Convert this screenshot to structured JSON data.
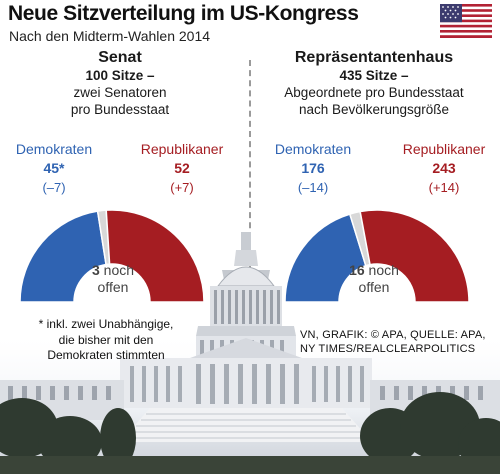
{
  "header": {
    "title": "Neue Sitzverteilung im US-Kongress",
    "subtitle": "Nach den Midterm-Wahlen 2014"
  },
  "colors": {
    "democrats": "#2f63b2",
    "republicans": "#a51d22",
    "open": "#d8d8d8"
  },
  "chart_data": [
    {
      "type": "pie",
      "title": "Senat",
      "total_label": "100 Sitze –",
      "desc_line1": "zwei Senatoren",
      "desc_line2": "pro Bundesstaat",
      "series": [
        {
          "name": "Demokraten",
          "value": 45,
          "value_label": "45*",
          "change": "(–7)"
        },
        {
          "name": "Republikaner",
          "value": 52,
          "value_label": "52",
          "change": "(+7)"
        }
      ],
      "open": {
        "value": 3,
        "label_line1": "noch",
        "label_line2": "offen"
      }
    },
    {
      "type": "pie",
      "title": "Repräsentantenhaus",
      "total_label": "435 Sitze –",
      "desc_line1": "Abgeordnete pro Bundesstaat",
      "desc_line2": "nach Bevölkerungsgröße",
      "series": [
        {
          "name": "Demokraten",
          "value": 176,
          "value_label": "176",
          "change": "(–14)"
        },
        {
          "name": "Republikaner",
          "value": 243,
          "value_label": "243",
          "change": "(+14)"
        }
      ],
      "open": {
        "value": 16,
        "label_line1": "noch",
        "label_line2": "offen"
      }
    }
  ],
  "footnote": {
    "line1": "* inkl. zwei Unabhängige,",
    "line2": "die bisher mit den",
    "line3": "Demokraten stimmten"
  },
  "source": {
    "line1": "VN, GRAFIK: © APA, QUELLE: APA,",
    "line2": "NY TIMES/REALCLEARPOLITICS"
  }
}
